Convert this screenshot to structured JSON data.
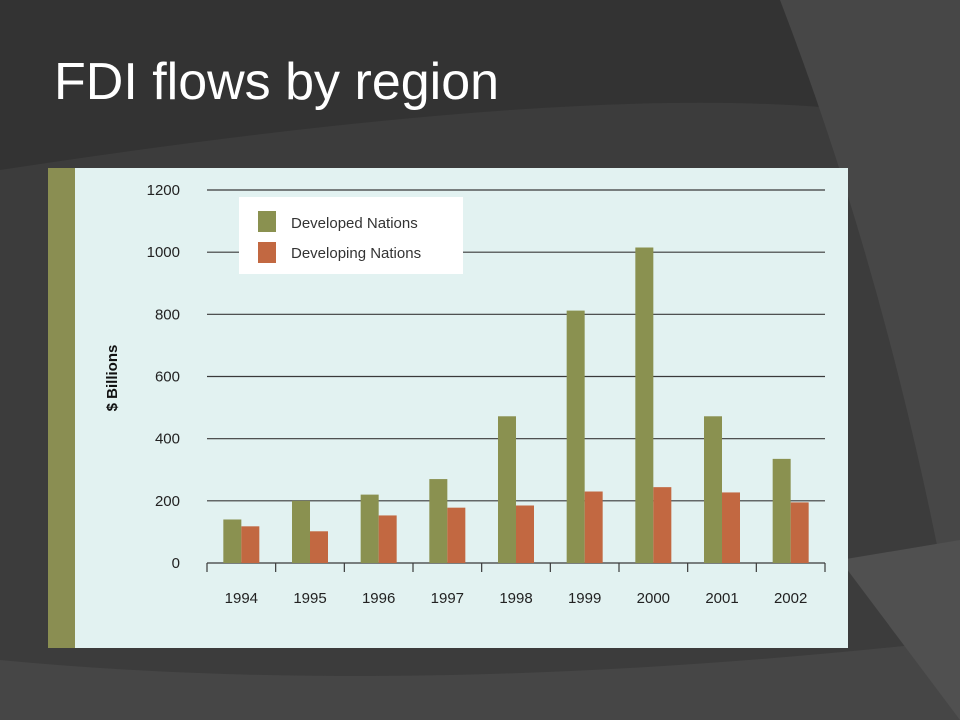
{
  "slide": {
    "title": "FDI flows by region"
  },
  "colors": {
    "background": "#3c3c3c",
    "panel": "#e2f2f1",
    "sidebar": "#8a8e52",
    "developed": "#8a9150",
    "developing": "#c26841"
  },
  "chart_data": {
    "type": "bar",
    "title": "",
    "xlabel": "",
    "ylabel": "$ Billions",
    "categories": [
      "1994",
      "1995",
      "1996",
      "1997",
      "1998",
      "1999",
      "2000",
      "2001",
      "2002"
    ],
    "series": [
      {
        "name": "Developed Nations",
        "values": [
          140,
          200,
          220,
          270,
          472,
          812,
          1015,
          472,
          335
        ]
      },
      {
        "name": "Developing Nations",
        "values": [
          118,
          102,
          153,
          178,
          185,
          230,
          244,
          227,
          195
        ]
      }
    ],
    "ylim": [
      0,
      1200
    ],
    "yticks": [
      "0",
      "200",
      "400",
      "600",
      "800",
      "1000",
      "1200"
    ],
    "grid": true,
    "legend_position": "top-left"
  }
}
